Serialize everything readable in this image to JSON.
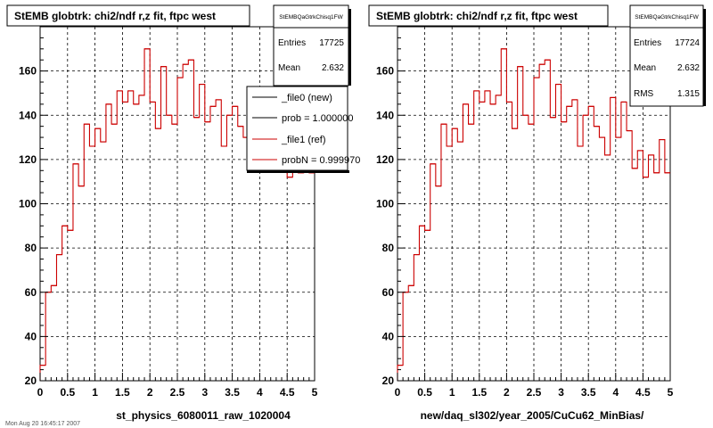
{
  "colors": {
    "hist_new": "#000000",
    "hist_ref": "#cc0000",
    "grid": "#000000",
    "frame": "#000000"
  },
  "footer_text": "Mon Aug 20 16:45:17 2007",
  "chart_data": [
    {
      "type": "histogram",
      "title": "StEMB globtrk: chi2/ndf r,z fit, ftpc west",
      "xlabel": "st_physics_6080011_raw_1020004",
      "ylabel": "",
      "xlim": [
        0,
        5
      ],
      "ylim": [
        20,
        180
      ],
      "x_ticks": [
        "0",
        "0.5",
        "1",
        "1.5",
        "2",
        "2.5",
        "3",
        "3.5",
        "4",
        "4.5",
        "5"
      ],
      "y_ticks": [
        "20",
        "40",
        "60",
        "80",
        "100",
        "120",
        "140",
        "160"
      ],
      "grid": true,
      "bin_width": 0.1,
      "stats": {
        "name": "StEMBQaGtrkChisq1FW",
        "rows": [
          {
            "label": "Entries",
            "value": "17725"
          },
          {
            "label": "Mean",
            "value": "2.632"
          }
        ]
      },
      "legend": {
        "placement": "top-right",
        "entries": [
          {
            "label": "_file0 (new)",
            "color": "#000000"
          },
          {
            "label": "prob = 1.000000",
            "color": "#000000"
          },
          {
            "label": "_file1 (ref)",
            "color": "#cc0000"
          },
          {
            "label": "probN = 0.999970",
            "color": "#cc0000"
          }
        ]
      },
      "series": [
        {
          "name": "_file1 (ref)",
          "values": [
            27,
            60,
            63,
            77,
            90,
            88,
            118,
            108,
            136,
            126,
            134,
            128,
            145,
            136,
            151,
            146,
            151,
            145,
            149,
            170,
            146,
            134,
            162,
            140,
            136,
            157,
            163,
            165,
            139,
            154,
            137,
            144,
            147,
            126,
            140,
            144,
            135,
            130,
            122,
            148,
            130,
            146,
            133,
            116,
            124,
            112,
            122,
            114,
            129,
            114
          ]
        }
      ]
    },
    {
      "type": "histogram",
      "title": "StEMB globtrk: chi2/ndf r,z fit, ftpc west",
      "xlabel": "new/daq_sl302/year_2005/CuCu62_MinBias/",
      "ylabel": "",
      "xlim": [
        0,
        5
      ],
      "ylim": [
        20,
        180
      ],
      "x_ticks": [
        "0",
        "0.5",
        "1",
        "1.5",
        "2",
        "2.5",
        "3",
        "3.5",
        "4",
        "4.5",
        "5"
      ],
      "y_ticks": [
        "20",
        "40",
        "60",
        "80",
        "100",
        "120",
        "140",
        "160"
      ],
      "grid": true,
      "bin_width": 0.1,
      "stats": {
        "name": "StEMBQaGtrkChisq1FW",
        "rows": [
          {
            "label": "Entries",
            "value": "17724"
          },
          {
            "label": "Mean",
            "value": "2.632"
          },
          {
            "label": "RMS",
            "value": "1.315"
          }
        ]
      },
      "series": [
        {
          "name": "",
          "values": [
            27,
            60,
            63,
            77,
            90,
            88,
            118,
            108,
            136,
            126,
            134,
            128,
            145,
            136,
            151,
            146,
            151,
            145,
            149,
            170,
            146,
            134,
            162,
            140,
            136,
            157,
            163,
            165,
            139,
            154,
            137,
            144,
            147,
            126,
            140,
            144,
            135,
            130,
            122,
            148,
            130,
            146,
            133,
            116,
            124,
            112,
            122,
            114,
            129,
            114
          ]
        }
      ]
    }
  ]
}
